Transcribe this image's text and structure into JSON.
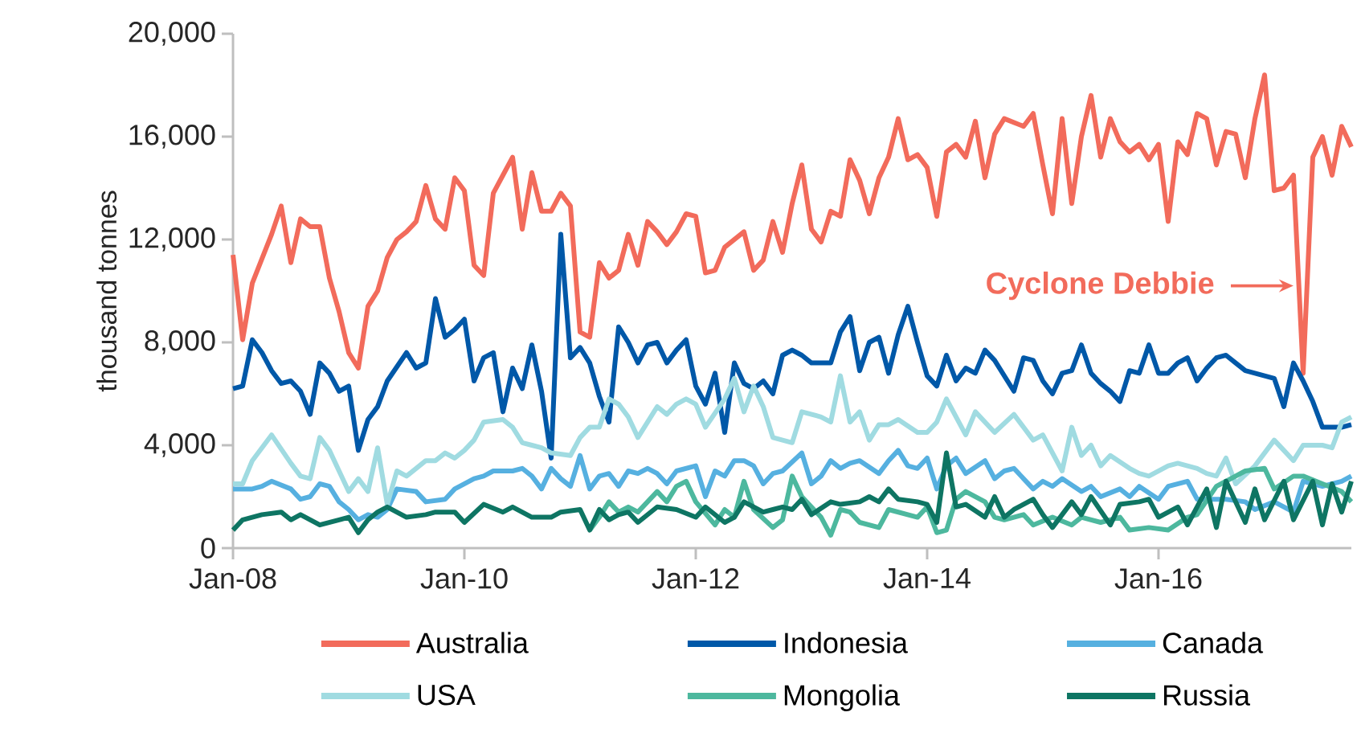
{
  "chart_data": {
    "type": "line",
    "ylabel": "thousand tonnes",
    "legend": "bottom",
    "xlim": [
      "2008-01",
      "2017-09"
    ],
    "xticks": [
      {
        "value": "2008-01",
        "label": "Jan-08"
      },
      {
        "value": "2010-01",
        "label": "Jan-10"
      },
      {
        "value": "2012-01",
        "label": "Jan-12"
      },
      {
        "value": "2014-01",
        "label": "Jan-14"
      },
      {
        "value": "2016-01",
        "label": "Jan-16"
      }
    ],
    "ylim": [
      0,
      20000
    ],
    "yticks": [
      0,
      {
        "value": 4000,
        "label": "4,000"
      },
      {
        "value": 8000,
        "label": "8,000"
      },
      {
        "value": 12000,
        "label": "12,000"
      },
      {
        "value": 16000,
        "label": "16,000"
      },
      {
        "value": 20000,
        "label": "20,000"
      }
    ],
    "annotations": [
      {
        "text": "Cyclone Debbie",
        "x": "2017-04",
        "y": 10200
      }
    ],
    "series": [
      {
        "name": "Australia",
        "color": "#f26b5b",
        "x": [
          "2008-01",
          "2008-02",
          "2008-03",
          "2008-05",
          "2008-06",
          "2008-07",
          "2008-08",
          "2008-09",
          "2008-10",
          "2008-11",
          "2008-12",
          "2009-01",
          "2009-02",
          "2009-03",
          "2009-04",
          "2009-05",
          "2009-06",
          "2009-07",
          "2009-08",
          "2009-09",
          "2009-10",
          "2009-11",
          "2009-12",
          "2010-01",
          "2010-02",
          "2010-03",
          "2010-04",
          "2010-05",
          "2010-06",
          "2010-07",
          "2010-08",
          "2010-09",
          "2010-10",
          "2010-11",
          "2010-12",
          "2011-01",
          "2011-02",
          "2011-03",
          "2011-04",
          "2011-05",
          "2011-06",
          "2011-07",
          "2011-08",
          "2011-09",
          "2011-10",
          "2011-11",
          "2011-12",
          "2012-01",
          "2012-02",
          "2012-03",
          "2012-04",
          "2012-06",
          "2012-07",
          "2012-08",
          "2012-09",
          "2012-10",
          "2012-11",
          "2012-12",
          "2013-01",
          "2013-02",
          "2013-03",
          "2013-04",
          "2013-05",
          "2013-06",
          "2013-07",
          "2013-08",
          "2013-09",
          "2013-10",
          "2013-11",
          "2013-12",
          "2014-01",
          "2014-02",
          "2014-03",
          "2014-04",
          "2014-05",
          "2014-06",
          "2014-07",
          "2014-08",
          "2014-09",
          "2014-11",
          "2014-12",
          "2015-01",
          "2015-02",
          "2015-03",
          "2015-04",
          "2015-05",
          "2015-06",
          "2015-07",
          "2015-08",
          "2015-09",
          "2015-10",
          "2015-11",
          "2015-12",
          "2016-01",
          "2016-02",
          "2016-03",
          "2016-04",
          "2016-05",
          "2016-06",
          "2016-07",
          "2016-08",
          "2016-09",
          "2016-10",
          "2016-11",
          "2016-12",
          "2017-01",
          "2017-02",
          "2017-03",
          "2017-04",
          "2017-05",
          "2017-06",
          "2017-07",
          "2017-08",
          "2017-09"
        ],
        "values": [
          11400,
          8100,
          10300,
          12200,
          13300,
          11100,
          12800,
          12500,
          12500,
          10500,
          9200,
          7600,
          7000,
          9400,
          10000,
          11300,
          12000,
          12300,
          12700,
          14100,
          12800,
          12400,
          14400,
          13900,
          11000,
          10600,
          13800,
          14500,
          15200,
          12400,
          14600,
          13100,
          13100,
          13800,
          13300,
          8400,
          8200,
          11100,
          10500,
          10800,
          12200,
          11000,
          12700,
          12300,
          11800,
          12300,
          13000,
          12900,
          10700,
          10800,
          11700,
          12300,
          10800,
          11200,
          12700,
          11500,
          13400,
          14900,
          12400,
          11900,
          13100,
          12900,
          15100,
          14300,
          13000,
          14400,
          15200,
          16700,
          15100,
          15300,
          14800,
          12900,
          15400,
          15700,
          15200,
          16600,
          14400,
          16100,
          16700,
          16400,
          16900,
          14900,
          13000,
          16700,
          13400,
          16000,
          17600,
          15200,
          16700,
          15800,
          15400,
          15700,
          15100,
          15700,
          12700,
          15800,
          15300,
          16900,
          16700,
          14900,
          16200,
          16100,
          14400,
          16700,
          18400,
          13900,
          14000,
          14500,
          6800,
          15200,
          16000,
          14500,
          16400,
          15600
        ]
      },
      {
        "name": "Indonesia",
        "color": "#0058a8",
        "x": [
          "2008-01",
          "2008-02",
          "2008-03",
          "2008-04",
          "2008-05",
          "2008-06",
          "2008-07",
          "2008-08",
          "2008-09",
          "2008-10",
          "2008-11",
          "2008-12",
          "2009-01",
          "2009-02",
          "2009-03",
          "2009-04",
          "2009-05",
          "2009-07",
          "2009-08",
          "2009-09",
          "2009-10",
          "2009-11",
          "2009-12",
          "2010-01",
          "2010-02",
          "2010-03",
          "2010-04",
          "2010-05",
          "2010-06",
          "2010-07",
          "2010-08",
          "2010-09",
          "2010-10",
          "2010-11",
          "2010-12",
          "2011-01",
          "2011-02",
          "2011-03",
          "2011-04",
          "2011-05",
          "2011-06",
          "2011-07",
          "2011-08",
          "2011-09",
          "2011-10",
          "2011-11",
          "2011-12",
          "2012-01",
          "2012-02",
          "2012-03",
          "2012-04",
          "2012-05",
          "2012-06",
          "2012-07",
          "2012-08",
          "2012-09",
          "2012-10",
          "2012-11",
          "2012-12",
          "2013-01",
          "2013-03",
          "2013-04",
          "2013-05",
          "2013-06",
          "2013-07",
          "2013-08",
          "2013-09",
          "2013-10",
          "2013-11",
          "2013-12",
          "2014-01",
          "2014-02",
          "2014-03",
          "2014-04",
          "2014-05",
          "2014-06",
          "2014-07",
          "2014-08",
          "2014-10",
          "2014-11",
          "2014-12",
          "2015-01",
          "2015-02",
          "2015-03",
          "2015-04",
          "2015-05",
          "2015-06",
          "2015-07",
          "2015-08",
          "2015-09",
          "2015-10",
          "2015-11",
          "2015-12",
          "2016-01",
          "2016-02",
          "2016-03",
          "2016-04",
          "2016-05",
          "2016-06",
          "2016-07",
          "2016-08",
          "2016-09",
          "2016-10",
          "2016-11",
          "2017-01",
          "2017-02",
          "2017-03",
          "2017-04",
          "2017-05",
          "2017-06",
          "2017-07",
          "2017-08",
          "2017-09"
        ],
        "values": [
          6200,
          6300,
          8100,
          7600,
          6900,
          6400,
          6500,
          6100,
          5200,
          7200,
          6800,
          6100,
          6300,
          3800,
          5000,
          5500,
          6500,
          7600,
          7000,
          7200,
          9700,
          8200,
          8500,
          8900,
          6500,
          7400,
          7600,
          5300,
          7000,
          6200,
          7900,
          6100,
          3500,
          12200,
          7400,
          7800,
          7200,
          5900,
          4900,
          8600,
          8000,
          7200,
          7900,
          8000,
          7200,
          7700,
          8100,
          6300,
          5600,
          6800,
          4500,
          7200,
          6400,
          6200,
          6500,
          6000,
          7500,
          7700,
          7500,
          7200,
          7200,
          8400,
          9000,
          6900,
          8000,
          8200,
          6800,
          8300,
          9400,
          8000,
          6700,
          6300,
          7500,
          6500,
          7000,
          6800,
          7700,
          7300,
          6100,
          7400,
          7300,
          6500,
          6000,
          6800,
          6900,
          7900,
          6800,
          6400,
          6100,
          5700,
          6900,
          6800,
          7900,
          6800,
          6800,
          7200,
          7400,
          6500,
          7000,
          7400,
          7500,
          7200,
          6900,
          6800,
          6600,
          5500,
          7200,
          6500,
          5700,
          4700,
          4700,
          4700,
          4800
        ]
      },
      {
        "name": "Canada",
        "color": "#56b0e0",
        "x": [
          "2008-01",
          "2008-03",
          "2008-04",
          "2008-05",
          "2008-07",
          "2008-08",
          "2008-09",
          "2008-10",
          "2008-11",
          "2008-12",
          "2009-01",
          "2009-02",
          "2009-03",
          "2009-04",
          "2009-05",
          "2009-06",
          "2009-08",
          "2009-09",
          "2009-11",
          "2009-12",
          "2010-02",
          "2010-03",
          "2010-04",
          "2010-06",
          "2010-07",
          "2010-08",
          "2010-09",
          "2010-10",
          "2010-11",
          "2010-12",
          "2011-01",
          "2011-02",
          "2011-03",
          "2011-04",
          "2011-05",
          "2011-06",
          "2011-07",
          "2011-08",
          "2011-09",
          "2011-10",
          "2011-11",
          "2012-01",
          "2012-02",
          "2012-03",
          "2012-04",
          "2012-05",
          "2012-06",
          "2012-07",
          "2012-08",
          "2012-09",
          "2012-10",
          "2012-12",
          "2013-01",
          "2013-02",
          "2013-03",
          "2013-04",
          "2013-05",
          "2013-06",
          "2013-08",
          "2013-09",
          "2013-10",
          "2013-11",
          "2013-12",
          "2014-01",
          "2014-02",
          "2014-03",
          "2014-04",
          "2014-05",
          "2014-07",
          "2014-08",
          "2014-09",
          "2014-10",
          "2014-12",
          "2015-01",
          "2015-02",
          "2015-03",
          "2015-05",
          "2015-06",
          "2015-07",
          "2015-09",
          "2015-10",
          "2015-11",
          "2016-01",
          "2016-02",
          "2016-04",
          "2016-05",
          "2016-07",
          "2016-08",
          "2016-10",
          "2016-11",
          "2017-01",
          "2017-03",
          "2017-04",
          "2017-06",
          "2017-08",
          "2017-09"
        ],
        "values": [
          2300,
          2300,
          2400,
          2600,
          2300,
          1900,
          2000,
          2500,
          2400,
          1800,
          1500,
          1100,
          1300,
          1200,
          1500,
          2300,
          2200,
          1800,
          1900,
          2300,
          2700,
          2800,
          3000,
          3000,
          3100,
          2800,
          2300,
          3100,
          2700,
          2400,
          3600,
          2300,
          2800,
          2900,
          2400,
          3000,
          2900,
          3100,
          2900,
          2500,
          3000,
          3200,
          2000,
          3000,
          2800,
          3400,
          3400,
          3200,
          2500,
          2900,
          3000,
          3700,
          2500,
          2800,
          3400,
          3100,
          3300,
          3400,
          2900,
          3400,
          3800,
          3200,
          3100,
          3500,
          2300,
          3200,
          3500,
          2900,
          3400,
          2700,
          3000,
          3100,
          2300,
          2600,
          2400,
          2700,
          2200,
          2400,
          2000,
          2300,
          2000,
          2400,
          1900,
          2400,
          2600,
          1900,
          1900,
          1900,
          1800,
          1500,
          1800,
          1400,
          2600,
          2400,
          2600,
          2800
        ]
      },
      {
        "name": "USA",
        "color": "#a0dbe1",
        "x": [
          "2008-01",
          "2008-02",
          "2008-03",
          "2008-05",
          "2008-07",
          "2008-08",
          "2008-09",
          "2008-10",
          "2008-11",
          "2008-12",
          "2009-01",
          "2009-02",
          "2009-03",
          "2009-04",
          "2009-05",
          "2009-06",
          "2009-07",
          "2009-09",
          "2009-10",
          "2009-11",
          "2009-12",
          "2010-01",
          "2010-02",
          "2010-03",
          "2010-05",
          "2010-06",
          "2010-07",
          "2010-08",
          "2010-09",
          "2010-10",
          "2010-12",
          "2011-01",
          "2011-02",
          "2011-03",
          "2011-04",
          "2011-05",
          "2011-06",
          "2011-07",
          "2011-09",
          "2011-10",
          "2011-11",
          "2011-12",
          "2012-01",
          "2012-02",
          "2012-04",
          "2012-05",
          "2012-06",
          "2012-07",
          "2012-08",
          "2012-09",
          "2012-11",
          "2012-12",
          "2013-02",
          "2013-03",
          "2013-04",
          "2013-05",
          "2013-06",
          "2013-07",
          "2013-08",
          "2013-09",
          "2013-10",
          "2013-12",
          "2014-01",
          "2014-02",
          "2014-03",
          "2014-05",
          "2014-06",
          "2014-08",
          "2014-10",
          "2014-12",
          "2015-01",
          "2015-03",
          "2015-04",
          "2015-05",
          "2015-06",
          "2015-07",
          "2015-08",
          "2015-10",
          "2015-11",
          "2015-12",
          "2016-02",
          "2016-03",
          "2016-05",
          "2016-06",
          "2016-07",
          "2016-08",
          "2016-09",
          "2016-11",
          "2017-01",
          "2017-02",
          "2017-03",
          "2017-04",
          "2017-06",
          "2017-07",
          "2017-08",
          "2017-09"
        ],
        "values": [
          2500,
          2500,
          3400,
          4400,
          3300,
          2800,
          2700,
          4300,
          3800,
          3000,
          2200,
          2700,
          2200,
          3900,
          1700,
          3000,
          2800,
          3400,
          3400,
          3700,
          3500,
          3800,
          4200,
          4900,
          5000,
          4700,
          4100,
          4000,
          3900,
          3700,
          3600,
          4300,
          4700,
          4700,
          5800,
          5600,
          5100,
          4300,
          5500,
          5200,
          5600,
          5800,
          5600,
          4700,
          5800,
          6600,
          5300,
          6300,
          5500,
          4300,
          4100,
          5300,
          5100,
          4900,
          6700,
          4900,
          5300,
          4200,
          4800,
          4800,
          5000,
          4500,
          4500,
          4900,
          5800,
          4400,
          5300,
          4500,
          5200,
          4200,
          4400,
          3000,
          4700,
          3600,
          4000,
          3200,
          3600,
          3100,
          2900,
          2800,
          3200,
          3300,
          3100,
          2900,
          2800,
          3500,
          2500,
          3200,
          4200,
          3800,
          3400,
          4000,
          4000,
          3900,
          4900,
          5100
        ]
      },
      {
        "name": "Mongolia",
        "color": "#4db89e",
        "x": [
          "2011-02",
          "2011-03",
          "2011-04",
          "2011-05",
          "2011-06",
          "2011-07",
          "2011-09",
          "2011-10",
          "2011-11",
          "2011-12",
          "2012-01",
          "2012-03",
          "2012-04",
          "2012-05",
          "2012-06",
          "2012-07",
          "2012-09",
          "2012-10",
          "2012-11",
          "2012-12",
          "2013-02",
          "2013-03",
          "2013-04",
          "2013-05",
          "2013-06",
          "2013-08",
          "2013-09",
          "2013-10",
          "2013-12",
          "2014-01",
          "2014-02",
          "2014-03",
          "2014-04",
          "2014-05",
          "2014-07",
          "2014-08",
          "2014-09",
          "2014-11",
          "2014-12",
          "2015-02",
          "2015-04",
          "2015-05",
          "2015-07",
          "2015-09",
          "2015-10",
          "2015-12",
          "2016-02",
          "2016-04",
          "2016-05",
          "2016-07",
          "2016-09",
          "2016-10",
          "2016-12",
          "2017-01",
          "2017-03",
          "2017-04",
          "2017-06",
          "2017-08",
          "2017-09"
        ],
        "values": [
          700,
          1200,
          1800,
          1400,
          1600,
          1400,
          2200,
          1800,
          2400,
          2600,
          1800,
          900,
          1500,
          1200,
          2600,
          1500,
          800,
          1100,
          2800,
          2000,
          1200,
          500,
          1500,
          1400,
          1000,
          800,
          1500,
          1400,
          1200,
          1600,
          600,
          700,
          1900,
          2200,
          1800,
          1200,
          1100,
          1300,
          900,
          1200,
          900,
          1200,
          1000,
          1200,
          700,
          800,
          700,
          1200,
          1300,
          2400,
          2800,
          3000,
          3100,
          2300,
          2800,
          2800,
          2500,
          2200,
          1800
        ]
      },
      {
        "name": "Russia",
        "color": "#0e7563",
        "x": [
          "2008-01",
          "2008-02",
          "2008-03",
          "2008-04",
          "2008-06",
          "2008-07",
          "2008-08",
          "2008-10",
          "2008-12",
          "2009-01",
          "2009-02",
          "2009-03",
          "2009-04",
          "2009-05",
          "2009-07",
          "2009-09",
          "2009-10",
          "2009-12",
          "2010-01",
          "2010-03",
          "2010-05",
          "2010-06",
          "2010-08",
          "2010-10",
          "2010-11",
          "2011-01",
          "2011-02",
          "2011-03",
          "2011-04",
          "2011-05",
          "2011-06",
          "2011-07",
          "2011-09",
          "2011-11",
          "2012-01",
          "2012-02",
          "2012-04",
          "2012-05",
          "2012-06",
          "2012-08",
          "2012-09",
          "2012-10",
          "2012-11",
          "2012-12",
          "2013-01",
          "2013-03",
          "2013-04",
          "2013-06",
          "2013-07",
          "2013-08",
          "2013-09",
          "2013-10",
          "2013-12",
          "2014-01",
          "2014-02",
          "2014-03",
          "2014-04",
          "2014-05",
          "2014-07",
          "2014-08",
          "2014-09",
          "2014-10",
          "2014-12",
          "2015-01",
          "2015-02",
          "2015-04",
          "2015-05",
          "2015-06",
          "2015-08",
          "2015-09",
          "2015-11",
          "2015-12",
          "2016-01",
          "2016-03",
          "2016-04",
          "2016-06",
          "2016-07",
          "2016-08",
          "2016-10",
          "2016-11",
          "2016-12",
          "2017-02",
          "2017-03",
          "2017-05",
          "2017-06",
          "2017-07",
          "2017-08",
          "2017-09"
        ],
        "values": [
          700,
          1100,
          1200,
          1300,
          1400,
          1100,
          1300,
          900,
          1100,
          1200,
          600,
          1100,
          1400,
          1600,
          1200,
          1300,
          1400,
          1400,
          1000,
          1700,
          1400,
          1600,
          1200,
          1200,
          1400,
          1500,
          700,
          1500,
          1100,
          1300,
          1400,
          1000,
          1600,
          1500,
          1200,
          1600,
          1000,
          1200,
          1800,
          1400,
          1500,
          1600,
          1500,
          1900,
          1300,
          1800,
          1700,
          1800,
          2000,
          1800,
          2300,
          1900,
          1800,
          1700,
          1000,
          3700,
          1600,
          1700,
          1200,
          2000,
          1200,
          1500,
          1900,
          1300,
          800,
          1800,
          1300,
          2000,
          900,
          1700,
          1800,
          1900,
          1200,
          1600,
          900,
          2300,
          800,
          2600,
          1000,
          2300,
          1100,
          2600,
          1100,
          2600,
          900,
          2500,
          1400,
          2600
        ]
      }
    ]
  }
}
